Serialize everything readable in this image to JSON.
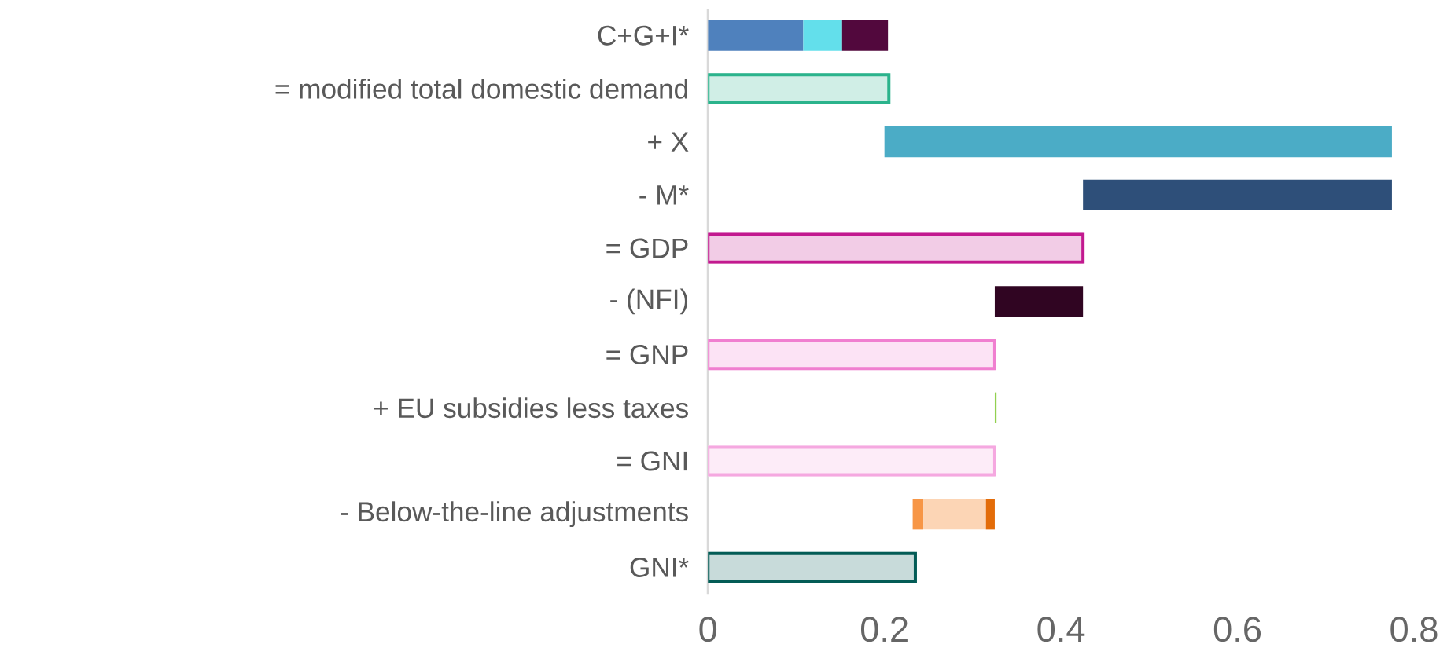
{
  "chart_data": {
    "type": "bar",
    "orientation": "horizontal",
    "categories": [
      "C+G+I*",
      "= modified total domestic demand",
      "+ X",
      "- M*",
      "= GDP",
      "- (NFI)",
      "= GNP",
      "+ EU subsidies less taxes",
      "= GNI",
      "- Below-the-line adjustments",
      "GNI*"
    ],
    "series": [
      {
        "base": [
          0,
          0,
          0.2,
          0.425,
          0,
          0.325,
          0,
          0.325,
          0,
          0.232,
          0
        ],
        "values": [
          0.108,
          0.205,
          0.575,
          0.35,
          0.425,
          0.1,
          0.325,
          0.002,
          0.325,
          0.012,
          0.235
        ],
        "colors": [
          "#4f81bd",
          "#2bb38c",
          "#4bacc6",
          "#2e4f79",
          "#c2198f",
          "#300522",
          "#f07fd0",
          "#92d050",
          "#f5a8e0",
          "#f79646",
          "#035c56"
        ]
      },
      {
        "base": [
          0.108,
          null,
          null,
          null,
          null,
          null,
          null,
          null,
          null,
          0.244,
          null
        ],
        "values": [
          0.044,
          null,
          null,
          null,
          null,
          null,
          null,
          null,
          null,
          0.071,
          null
        ],
        "colors": [
          "#63dfeb",
          null,
          null,
          null,
          null,
          null,
          null,
          null,
          null,
          "#fcd5b5",
          null
        ]
      },
      {
        "base": [
          0.152,
          null,
          null,
          null,
          null,
          null,
          null,
          null,
          null,
          0.315,
          null
        ],
        "values": [
          0.052,
          null,
          null,
          null,
          null,
          null,
          null,
          null,
          null,
          0.01,
          null
        ],
        "colors": [
          "#52083d",
          null,
          null,
          null,
          null,
          null,
          null,
          null,
          null,
          "#e36c09",
          null
        ]
      }
    ],
    "xlim": [
      0,
      0.8
    ],
    "xticks": [
      0,
      0.2,
      0.4,
      0.6,
      0.8
    ],
    "grid": false
  }
}
